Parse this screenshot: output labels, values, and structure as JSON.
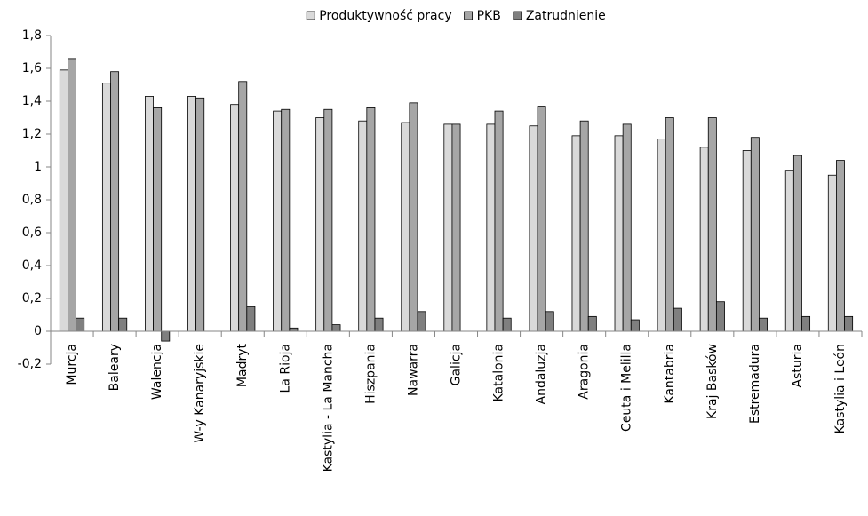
{
  "chart_data": {
    "type": "bar",
    "categories": [
      "Murcja",
      "Baleary",
      "Walencja",
      "W-y Kanaryjskie",
      "Madryt",
      "La Rioja",
      "Kastylia - La Mancha",
      "Hiszpania",
      "Nawarra",
      "Galicja",
      "Katalonia",
      "Andaluzja",
      "Aragonia",
      "Ceuta i Melilla",
      "Kantabria",
      "Kraj Basków",
      "Estremadura",
      "Asturia",
      "Kastylia i León"
    ],
    "series": [
      {
        "name": "Produktywność pracy",
        "color": "#d9d9d9",
        "values": [
          1.59,
          1.51,
          1.43,
          1.43,
          1.38,
          1.34,
          1.3,
          1.28,
          1.27,
          1.26,
          1.26,
          1.25,
          1.19,
          1.19,
          1.17,
          1.12,
          1.1,
          0.98,
          0.95
        ]
      },
      {
        "name": "PKB",
        "color": "#a6a6a6",
        "values": [
          1.66,
          1.58,
          1.36,
          1.42,
          1.52,
          1.35,
          1.35,
          1.36,
          1.39,
          1.26,
          1.34,
          1.37,
          1.28,
          1.26,
          1.3,
          1.3,
          1.18,
          1.07,
          1.04
        ]
      },
      {
        "name": "Zatrudnienie",
        "color": "#7f7f7f",
        "values": [
          0.08,
          0.08,
          -0.06,
          0,
          0.15,
          0.02,
          0.04,
          0.08,
          0.12,
          0,
          0.08,
          0.12,
          0.09,
          0.07,
          0.14,
          0.18,
          0.08,
          0.09,
          0.09
        ]
      }
    ],
    "ylim": [
      -0.2,
      1.8
    ],
    "yticks": [
      {
        "value": -0.2,
        "label": "-0,2"
      },
      0,
      {
        "value": 0.2,
        "label": "0,2"
      },
      {
        "value": 0.4,
        "label": "0,4"
      },
      {
        "value": 0.6,
        "label": "0,6"
      },
      {
        "value": 0.8,
        "label": "0,8"
      },
      1,
      {
        "value": 1.2,
        "label": "1,2"
      },
      {
        "value": 1.4,
        "label": "1,4"
      },
      {
        "value": 1.6,
        "label": "1,6"
      },
      {
        "value": 1.8,
        "label": "1,8"
      }
    ],
    "grid": false,
    "legend": "top"
  }
}
